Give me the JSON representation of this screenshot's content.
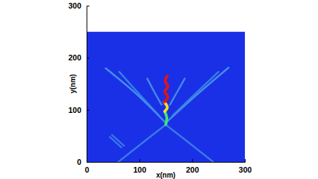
{
  "chart_data": {
    "type": "line",
    "x_label": "x(nm)",
    "y_label": "y(nm)",
    "xlim": [
      0,
      300
    ],
    "ylim": [
      0,
      300
    ],
    "xticks": [
      0,
      100,
      200,
      300
    ],
    "yticks": [
      0,
      100,
      200,
      300
    ],
    "series": [
      {
        "type": "area",
        "color": "#1a30e6",
        "x": [
          0,
          300
        ],
        "values": [
          250,
          250
        ]
      },
      {
        "color": "#3f86ea",
        "line_style": "solid",
        "x": [
          148,
          100,
          60
        ],
        "values": [
          70,
          32,
          0
        ]
      },
      {
        "color": "#3f86ea",
        "line_style": "solid",
        "x": [
          152,
          200,
          240
        ],
        "values": [
          70,
          32,
          0
        ]
      },
      {
        "color": "#4fa0ea",
        "line_style": "solid",
        "x": [
          150,
          95,
          36
        ],
        "values": [
          75,
          130,
          180
        ]
      },
      {
        "color": "#4fa0ea",
        "line_style": "solid",
        "x": [
          150,
          210,
          269
        ],
        "values": [
          75,
          130,
          181
        ]
      },
      {
        "color": "#3d8ce8",
        "line_style": "solid",
        "x": [
          138,
          100,
          62
        ],
        "values": [
          88,
          130,
          173
        ]
      },
      {
        "color": "#3d8ce8",
        "line_style": "solid",
        "x": [
          162,
          205,
          250
        ],
        "values": [
          88,
          130,
          173
        ]
      },
      {
        "color": "#4a9aea",
        "line_style": "solid",
        "x": [
          142,
          128,
          115
        ],
        "values": [
          110,
          135,
          160
        ]
      },
      {
        "color": "#4a9aea",
        "line_style": "solid",
        "x": [
          158,
          172,
          186
        ],
        "values": [
          110,
          135,
          160
        ]
      },
      {
        "color": "#3a80e8",
        "line_style": "solid",
        "x": [
          48,
          71
        ],
        "values": [
          52,
          31
        ]
      },
      {
        "color": "#3a80e8",
        "line_style": "solid",
        "x": [
          44,
          66
        ],
        "values": [
          48,
          28
        ]
      },
      {
        "color": "#3fe07a",
        "line_style": "thick",
        "x": [
          150,
          152,
          148
        ],
        "values": [
          72,
          85,
          97
        ]
      },
      {
        "color": "#f0e020",
        "line_style": "thick",
        "x": [
          148,
          153,
          147
        ],
        "values": [
          97,
          105,
          115
        ]
      },
      {
        "color": "#e01414",
        "line_style": "thick",
        "x": [
          147,
          154,
          148,
          154,
          149,
          153
        ],
        "values": [
          115,
          125,
          135,
          145,
          155,
          165
        ]
      }
    ]
  }
}
